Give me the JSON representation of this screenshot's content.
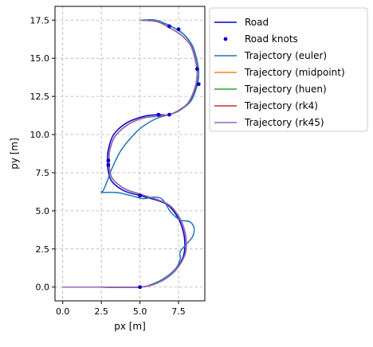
{
  "chart_data": {
    "type": "line",
    "title": "",
    "xlabel": "px [m]",
    "ylabel": "py [m]",
    "xlim": [
      -0.5,
      9.2
    ],
    "ylim": [
      -0.9,
      18.4
    ],
    "xticks": [
      0.0,
      2.5,
      5.0,
      7.5
    ],
    "xtick_labels": [
      "0.0",
      "2.5",
      "5.0",
      "7.5"
    ],
    "yticks": [
      0.0,
      2.5,
      5.0,
      7.5,
      10.0,
      12.5,
      15.0,
      17.5
    ],
    "ytick_labels": [
      "0.0",
      "2.5",
      "5.0",
      "7.5",
      "10.0",
      "12.5",
      "15.0",
      "17.5"
    ],
    "grid": true,
    "legend_position": "outside-right-top",
    "road": {
      "name": "Road",
      "color": "#0000cc",
      "x": [
        0.0,
        2.5,
        5.0,
        6.2,
        7.2,
        7.8,
        7.9,
        7.7,
        7.3,
        6.6,
        5.0,
        4.0,
        3.2,
        2.95,
        2.9,
        2.95,
        3.3,
        4.2,
        5.3,
        6.2,
        6.9,
        7.7,
        8.3,
        8.7,
        8.8,
        8.7,
        8.4,
        7.8,
        7.0,
        6.2,
        5.0
      ],
      "y": [
        0.0,
        0.0,
        0.0,
        0.3,
        1.0,
        2.0,
        3.0,
        4.0,
        4.8,
        5.5,
        6.0,
        6.3,
        6.9,
        7.6,
        8.3,
        9.0,
        10.0,
        10.8,
        11.2,
        11.3,
        11.3,
        11.7,
        12.3,
        13.3,
        14.0,
        14.8,
        15.8,
        16.6,
        17.1,
        17.4,
        17.5
      ]
    },
    "knots": {
      "name": "Road knots",
      "color": "#0000cc",
      "x": [
        5.0,
        5.0,
        2.95,
        2.95,
        6.2,
        6.9,
        8.8,
        8.7,
        7.5,
        6.9
      ],
      "y": [
        0.0,
        6.0,
        8.0,
        8.3,
        11.3,
        11.3,
        13.3,
        14.3,
        16.9,
        17.1
      ]
    },
    "series": [
      {
        "name": "Trajectory (euler)",
        "color": "#1f77b4",
        "x": [
          0.0,
          2.5,
          5.0,
          5.8,
          6.6,
          7.3,
          7.6,
          7.6,
          7.9,
          8.4,
          8.5,
          8.2,
          7.6,
          7.0,
          6.7,
          6.4,
          5.9,
          5.2,
          4.4,
          3.5,
          2.6,
          2.5,
          2.6,
          2.7,
          2.9,
          3.2,
          3.8,
          4.8,
          5.6,
          6.2,
          6.9,
          7.6,
          8.3,
          8.7,
          8.8,
          8.7,
          8.4,
          7.8,
          7.0,
          6.0,
          5.0
        ],
        "y": [
          0.0,
          0.0,
          0.0,
          0.2,
          0.6,
          1.2,
          1.8,
          2.3,
          2.7,
          3.3,
          3.9,
          4.3,
          4.4,
          4.9,
          5.4,
          5.8,
          5.9,
          5.8,
          6.0,
          6.2,
          6.2,
          6.25,
          6.3,
          6.5,
          7.0,
          7.8,
          9.0,
          10.2,
          10.8,
          11.1,
          11.3,
          11.6,
          12.2,
          13.2,
          14.0,
          14.8,
          15.8,
          16.6,
          17.1,
          17.5,
          17.5
        ]
      },
      {
        "name": "Trajectory (midpoint)",
        "color": "#ff7f0e",
        "x": [
          0.0,
          2.5,
          5.0,
          6.3,
          7.3,
          7.9,
          8.0,
          7.8,
          7.4,
          6.7,
          5.0,
          4.1,
          3.3,
          3.05,
          3.0,
          3.05,
          3.4,
          4.3,
          5.3,
          6.2,
          6.9,
          7.6,
          8.2,
          8.6,
          8.7,
          8.6,
          8.3,
          7.7,
          6.9,
          6.1,
          5.0
        ],
        "y": [
          0.0,
          0.0,
          0.0,
          0.35,
          1.1,
          2.1,
          3.0,
          4.0,
          4.8,
          5.5,
          6.1,
          6.4,
          7.0,
          7.6,
          8.3,
          9.0,
          9.9,
          10.7,
          11.1,
          11.2,
          11.3,
          11.6,
          12.2,
          13.2,
          14.0,
          14.8,
          15.8,
          16.5,
          17.0,
          17.4,
          17.5
        ]
      },
      {
        "name": "Trajectory (huen)",
        "color": "#2ca02c",
        "x": [
          0.0,
          2.5,
          5.0,
          6.3,
          7.3,
          7.9,
          8.0,
          7.8,
          7.4,
          6.7,
          5.0,
          4.1,
          3.3,
          3.05,
          3.0,
          3.05,
          3.4,
          4.3,
          5.3,
          6.2,
          6.9,
          7.6,
          8.2,
          8.6,
          8.7,
          8.6,
          8.3,
          7.7,
          6.9,
          6.1,
          5.0
        ],
        "y": [
          0.0,
          0.0,
          0.0,
          0.35,
          1.1,
          2.1,
          3.0,
          4.0,
          4.8,
          5.5,
          6.1,
          6.4,
          7.0,
          7.6,
          8.3,
          9.0,
          9.9,
          10.7,
          11.1,
          11.2,
          11.3,
          11.6,
          12.2,
          13.2,
          14.0,
          14.8,
          15.8,
          16.5,
          17.0,
          17.4,
          17.5
        ]
      },
      {
        "name": "Trajectory (rk4)",
        "color": "#d62728",
        "x": [
          0.0,
          2.5,
          5.0,
          6.3,
          7.3,
          7.9,
          8.0,
          7.8,
          7.4,
          6.7,
          5.0,
          4.1,
          3.3,
          3.05,
          3.0,
          3.05,
          3.4,
          4.3,
          5.3,
          6.2,
          6.9,
          7.6,
          8.2,
          8.6,
          8.7,
          8.6,
          8.3,
          7.7,
          6.9,
          6.1,
          5.0
        ],
        "y": [
          0.0,
          0.0,
          0.0,
          0.35,
          1.1,
          2.1,
          3.0,
          4.0,
          4.8,
          5.5,
          6.1,
          6.4,
          7.0,
          7.6,
          8.3,
          9.0,
          9.9,
          10.7,
          11.1,
          11.2,
          11.3,
          11.6,
          12.2,
          13.2,
          14.0,
          14.8,
          15.8,
          16.5,
          17.0,
          17.4,
          17.5
        ]
      },
      {
        "name": "Trajectory (rk45)",
        "color": "#9467bd",
        "x": [
          0.0,
          2.5,
          5.0,
          6.3,
          7.3,
          7.9,
          8.0,
          7.8,
          7.4,
          6.7,
          5.0,
          4.1,
          3.3,
          3.05,
          3.0,
          3.05,
          3.4,
          4.3,
          5.3,
          6.2,
          6.9,
          7.6,
          8.2,
          8.6,
          8.7,
          8.6,
          8.3,
          7.7,
          6.9,
          6.1,
          5.0
        ],
        "y": [
          0.0,
          0.0,
          0.0,
          0.35,
          1.1,
          2.1,
          3.0,
          4.0,
          4.8,
          5.5,
          6.1,
          6.4,
          7.0,
          7.6,
          8.3,
          9.0,
          9.9,
          10.7,
          11.1,
          11.2,
          11.3,
          11.6,
          12.2,
          13.2,
          14.0,
          14.8,
          15.8,
          16.5,
          17.0,
          17.4,
          17.5
        ]
      }
    ]
  }
}
